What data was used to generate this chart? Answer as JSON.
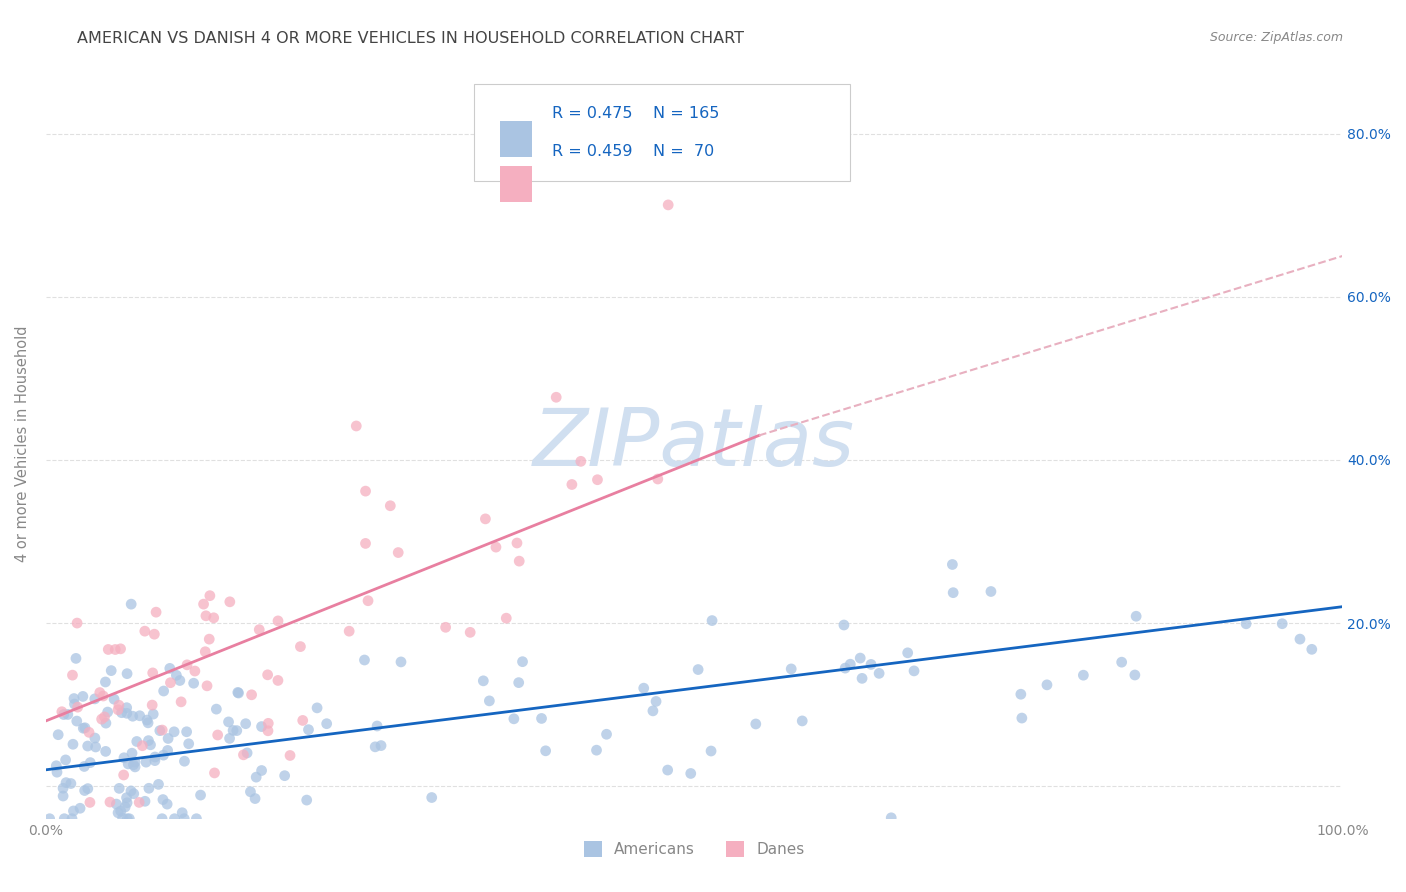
{
  "title": "AMERICAN VS DANISH 4 OR MORE VEHICLES IN HOUSEHOLD CORRELATION CHART",
  "source": "Source: ZipAtlas.com",
  "ylabel": "4 or more Vehicles in Household",
  "xlim": [
    0,
    1.0
  ],
  "ylim": [
    -0.04,
    0.88
  ],
  "xticks": [
    0.0,
    0.2,
    0.4,
    0.6,
    0.8,
    1.0
  ],
  "xticklabels": [
    "0.0%",
    "",
    "",
    "",
    "",
    "100.0%"
  ],
  "ytick_positions": [
    0.0,
    0.2,
    0.4,
    0.6,
    0.8
  ],
  "yticklabels_right": [
    "",
    "20.0%",
    "40.0%",
    "60.0%",
    "80.0%"
  ],
  "american_color": "#aac4e2",
  "danish_color": "#f5afc0",
  "american_line_color": "#1565c0",
  "danish_line_color": "#e87fa0",
  "danish_line_dash_color": "#e8b0c0",
  "watermark_color": "#d0dff0",
  "background_color": "#ffffff",
  "grid_color": "#e0e0e0",
  "grid_style": "--",
  "title_color": "#444444",
  "source_color": "#888888",
  "legend_text_color": "#1565c0",
  "tick_color": "#888888",
  "american_seed": 12,
  "danish_seed": 55,
  "american_N": 165,
  "danish_N": 70,
  "american_R": 0.475,
  "danish_R": 0.459,
  "am_line_x0": 0.0,
  "am_line_x1": 1.0,
  "am_line_y0": 0.02,
  "am_line_y1": 0.22,
  "da_line_solid_x0": 0.0,
  "da_line_solid_x1": 0.55,
  "da_line_solid_y0": 0.08,
  "da_line_solid_y1": 0.43,
  "da_line_dash_x0": 0.55,
  "da_line_dash_x1": 1.0,
  "da_line_dash_y0": 0.43,
  "da_line_dash_y1": 0.65
}
